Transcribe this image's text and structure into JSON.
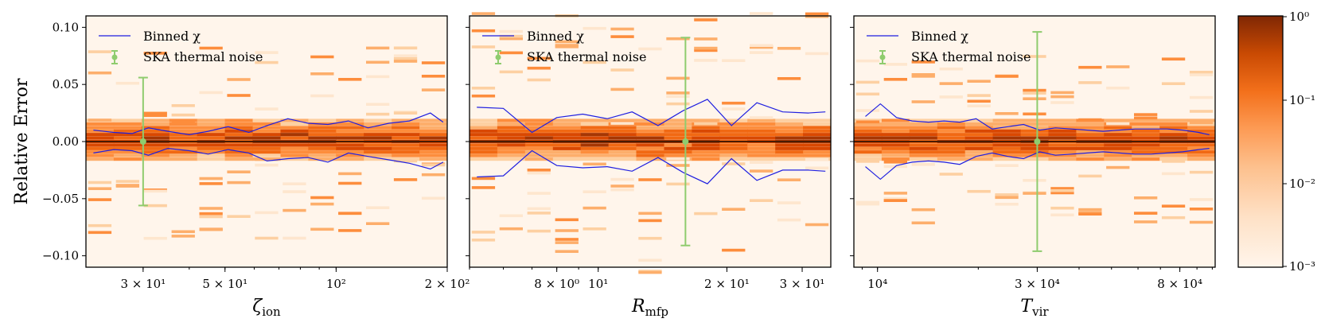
{
  "figure": {
    "ylabel": "Relative Error",
    "ylim": [
      -0.11,
      0.11
    ],
    "yticks": [
      0.1,
      0.05,
      0.0,
      -0.05,
      -0.1
    ],
    "ytick_labels": [
      "0.10",
      "0.05",
      "0.00",
      "−0.05",
      "−0.10"
    ]
  },
  "legend": {
    "line_label": "Binned χ",
    "errorbar_label": "SKA thermal noise",
    "line_color": "#1f1fe0",
    "errorbar_color": "#8fcc6e"
  },
  "colorbar": {
    "scale": "log",
    "range": [
      0.001,
      1
    ],
    "tick_labels": [
      "10⁰",
      "10⁻¹",
      "10⁻²",
      "10⁻³"
    ],
    "colormap": "Oranges"
  },
  "chart_data": [
    {
      "type": "heatmap",
      "xlabel": "ζion",
      "xscale": "log",
      "xlim": [
        21,
        200
      ],
      "xticks": [
        30,
        50,
        100,
        200
      ],
      "xtick_labels": [
        "3 × 10¹",
        "5 × 10¹",
        "10²",
        "2 × 10²"
      ],
      "series": [
        {
          "name": "Binned χ",
          "kind": "line",
          "x": [
            22,
            25,
            28,
            31,
            35,
            40,
            45,
            51,
            58,
            65,
            74,
            84,
            95,
            108,
            122,
            139,
            158,
            180,
            195
          ],
          "y_upper": [
            0.01,
            0.008,
            0.007,
            0.012,
            0.009,
            0.006,
            0.009,
            0.013,
            0.008,
            0.014,
            0.02,
            0.016,
            0.015,
            0.018,
            0.012,
            0.016,
            0.018,
            0.025,
            0.017
          ],
          "y_lower": [
            -0.01,
            -0.007,
            -0.008,
            -0.012,
            -0.006,
            -0.008,
            -0.011,
            -0.007,
            -0.01,
            -0.017,
            -0.015,
            -0.014,
            -0.018,
            -0.01,
            -0.013,
            -0.016,
            -0.019,
            -0.024,
            -0.018
          ]
        },
        {
          "name": "SKA thermal noise",
          "kind": "errorbar",
          "x": 30,
          "y": 0.0,
          "yerr": 0.056
        }
      ]
    },
    {
      "type": "heatmap",
      "xlabel": "Rmfp",
      "xscale": "log",
      "xlim": [
        5,
        35
      ],
      "xticks": [
        8,
        10,
        20,
        30
      ],
      "xtick_labels": [
        "8 × 10⁰",
        "10¹",
        "2 × 10¹",
        "3 × 10¹"
      ],
      "series": [
        {
          "name": "Binned χ",
          "kind": "line",
          "x": [
            5.2,
            6.0,
            7.0,
            8.0,
            9.2,
            10.5,
            12.0,
            13.8,
            15.8,
            18.0,
            20.5,
            23.5,
            27.0,
            31.0,
            34.0
          ],
          "y_upper": [
            0.03,
            0.029,
            0.008,
            0.021,
            0.024,
            0.02,
            0.026,
            0.014,
            0.027,
            0.037,
            0.014,
            0.034,
            0.026,
            0.025,
            0.026
          ],
          "y_lower": [
            -0.031,
            -0.03,
            -0.008,
            -0.021,
            -0.023,
            -0.022,
            -0.026,
            -0.014,
            -0.027,
            -0.037,
            -0.015,
            -0.034,
            -0.025,
            -0.025,
            -0.026
          ]
        },
        {
          "name": "SKA thermal noise",
          "kind": "errorbar",
          "x": 16,
          "y": 0.0,
          "yerr": 0.091
        }
      ]
    },
    {
      "type": "heatmap",
      "xlabel": "Tvir",
      "xscale": "log",
      "xlim": [
        8500,
        102000
      ],
      "xticks": [
        10000,
        30000,
        80000
      ],
      "xtick_labels": [
        "10⁴",
        "3 × 10⁴",
        "8 × 10⁴"
      ],
      "series": [
        {
          "name": "Binned χ",
          "kind": "line",
          "x": [
            9200,
            10200,
            11400,
            12700,
            14200,
            15800,
            17600,
            19700,
            22000,
            24500,
            27300,
            30500,
            34000,
            38000,
            42300,
            47200,
            52700,
            58800,
            65600,
            73200,
            81600,
            91000,
            98000
          ],
          "y_upper": [
            0.022,
            0.033,
            0.021,
            0.018,
            0.017,
            0.018,
            0.017,
            0.02,
            0.011,
            0.013,
            0.015,
            0.01,
            0.012,
            0.011,
            0.01,
            0.009,
            0.01,
            0.011,
            0.011,
            0.011,
            0.01,
            0.008,
            0.006
          ],
          "y_lower": [
            -0.022,
            -0.033,
            -0.021,
            -0.018,
            -0.017,
            -0.018,
            -0.02,
            -0.013,
            -0.01,
            -0.013,
            -0.015,
            -0.009,
            -0.012,
            -0.011,
            -0.01,
            -0.009,
            -0.01,
            -0.011,
            -0.011,
            -0.01,
            -0.009,
            -0.007,
            -0.006
          ]
        },
        {
          "name": "SKA thermal noise",
          "kind": "errorbar",
          "x": 30000,
          "y": 0.0,
          "yerr": 0.096
        }
      ]
    }
  ]
}
